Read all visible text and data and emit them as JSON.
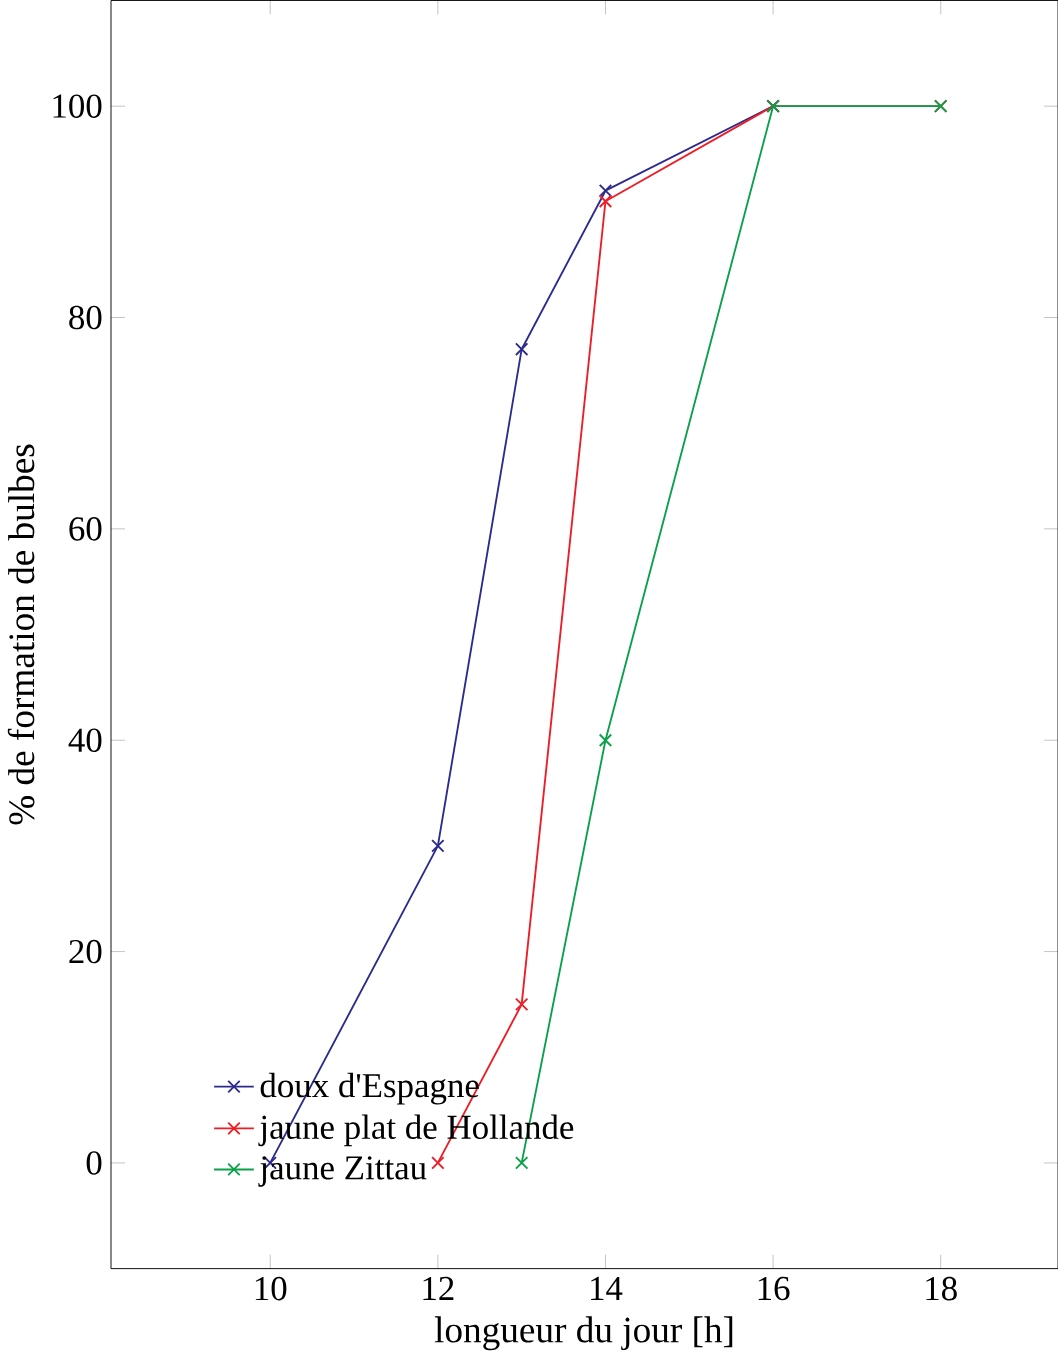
{
  "chart_data": {
    "type": "line",
    "xlabel": "longueur du jour [h]",
    "ylabel": "% de formation de bulbes",
    "xlim": [
      8.1,
      19.4
    ],
    "xticks": [
      10,
      12,
      14,
      16,
      18
    ],
    "ylim": [
      -10,
      110
    ],
    "yticks": [
      0,
      20,
      40,
      60,
      80,
      100
    ],
    "grid": false,
    "legend": "bottom left",
    "series": [
      {
        "name": "doux d'Espagne",
        "color": "#2b2b8f",
        "marker": "cross",
        "x": [
          10,
          12,
          13,
          14,
          16
        ],
        "values": [
          0,
          30,
          77,
          92,
          100
        ]
      },
      {
        "name": "jaune plat de Hollande",
        "color": "#ee1c25",
        "marker": "cross",
        "x": [
          12,
          13,
          14,
          16,
          18
        ],
        "values": [
          0,
          15,
          91,
          100,
          100
        ]
      },
      {
        "name": "jaune Zittau",
        "color": "#0aa04a",
        "marker": "cross",
        "x": [
          13,
          14,
          16,
          18
        ],
        "values": [
          0,
          40,
          100,
          100
        ]
      }
    ]
  }
}
